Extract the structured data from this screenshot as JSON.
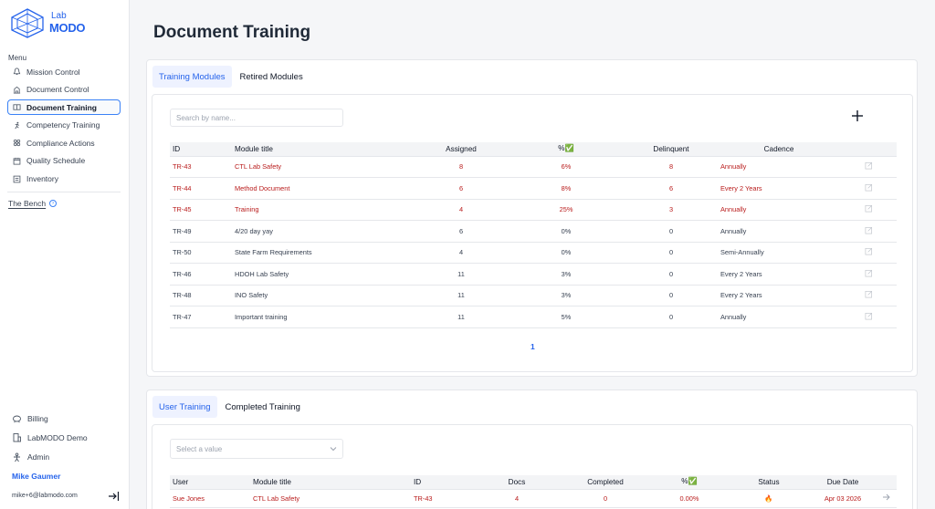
{
  "brand": {
    "line1": "Lab",
    "line2": "MODO"
  },
  "sidebar": {
    "menu_label": "Menu",
    "items": [
      {
        "label": "Mission Control",
        "icon": "bell-icon"
      },
      {
        "label": "Document Control",
        "icon": "building-icon"
      },
      {
        "label": "Document Training",
        "icon": "book-icon"
      },
      {
        "label": "Competency Training",
        "icon": "runner-icon"
      },
      {
        "label": "Compliance Actions",
        "icon": "grid-icon"
      },
      {
        "label": "Quality Schedule",
        "icon": "calendar-icon"
      },
      {
        "label": "Inventory",
        "icon": "box-icon"
      }
    ],
    "bench_label": "The Bench",
    "bottom": [
      {
        "label": "Billing",
        "icon": "piggy-bank-icon"
      },
      {
        "label": "LabMODO Demo",
        "icon": "office-icon"
      },
      {
        "label": "Admin",
        "icon": "person-icon"
      }
    ],
    "user_name": "Mike Gaumer",
    "user_email": "mike+6@labmodo.com"
  },
  "page_title": "Document Training",
  "modules_card": {
    "tabs": [
      "Training Modules",
      "Retired Modules"
    ],
    "search_placeholder": "Search by name...",
    "columns": [
      "ID",
      "Module title",
      "Assigned",
      "%✅",
      "Delinquent",
      "Cadence"
    ],
    "rows": [
      {
        "id": "TR-43",
        "title": "CTL Lab Safety",
        "assigned": "8",
        "pct": "6%",
        "delinquent": "8",
        "cadence": "Annually",
        "red": true
      },
      {
        "id": "TR-44",
        "title": "Method Document",
        "assigned": "6",
        "pct": "8%",
        "delinquent": "6",
        "cadence": "Every 2 Years",
        "red": true
      },
      {
        "id": "TR-45",
        "title": "Training",
        "assigned": "4",
        "pct": "25%",
        "delinquent": "3",
        "cadence": "Annually",
        "red": true
      },
      {
        "id": "TR-49",
        "title": "4/20 day yay",
        "assigned": "6",
        "pct": "0%",
        "delinquent": "0",
        "cadence": "Annually",
        "red": false
      },
      {
        "id": "TR-50",
        "title": "State Farm Requirements",
        "assigned": "4",
        "pct": "0%",
        "delinquent": "0",
        "cadence": "Semi-Annually",
        "red": false
      },
      {
        "id": "TR-46",
        "title": "HDOH Lab Safety",
        "assigned": "11",
        "pct": "3%",
        "delinquent": "0",
        "cadence": "Every 2 Years",
        "red": false
      },
      {
        "id": "TR-48",
        "title": "INO Safety",
        "assigned": "11",
        "pct": "3%",
        "delinquent": "0",
        "cadence": "Every 2 Years",
        "red": false
      },
      {
        "id": "TR-47",
        "title": "Important  training",
        "assigned": "11",
        "pct": "5%",
        "delinquent": "0",
        "cadence": "Annually",
        "red": false
      }
    ],
    "page": "1"
  },
  "user_card": {
    "tabs": [
      "User Training",
      "Completed Training"
    ],
    "select_placeholder": "Select a value",
    "columns": [
      "User",
      "Module title",
      "ID",
      "Docs",
      "Completed",
      "%✅",
      "Status",
      "Due Date"
    ],
    "rows": [
      {
        "user": "Sue Jones",
        "title": "CTL Lab Safety",
        "id": "TR-43",
        "docs": "4",
        "completed": "0",
        "pct": "0.00%",
        "status": "🔥",
        "due": "Apr 03 2026"
      }
    ]
  },
  "colors": {
    "accent": "#2563eb",
    "danger": "#b91c1c"
  }
}
